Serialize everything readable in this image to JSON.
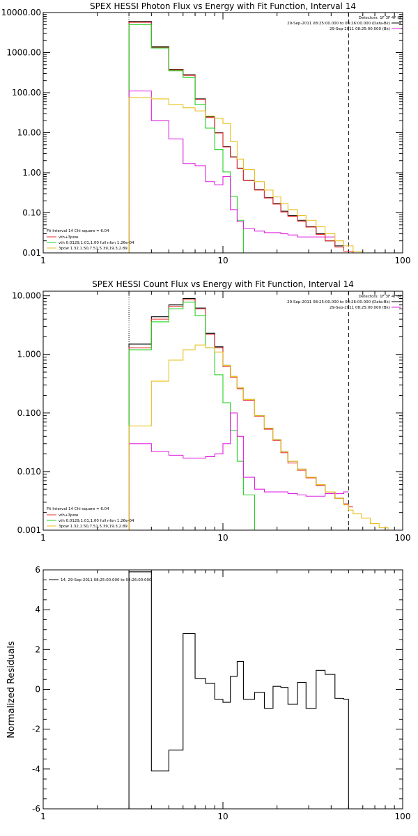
{
  "chart_data": [
    {
      "type": "line",
      "title": "SPEX HESSI Photon Flux vs Energy with Fit Function, Interval 14",
      "xlabel": "",
      "ylabel": "",
      "xscale": "log",
      "yscale": "log",
      "xlim": [
        1,
        100
      ],
      "ylim": [
        0.01,
        10000
      ],
      "xticks": [
        "1",
        "10",
        "100"
      ],
      "yticks": [
        "0.01",
        "0.10",
        "1.00",
        "10.00",
        "100.00",
        "1000.00",
        "10000.00"
      ],
      "vlines": [
        {
          "x": 3,
          "style": "dotted"
        },
        {
          "x": 50,
          "style": "dashed"
        }
      ],
      "legend_top_right": [
        "Detectors: 1F 3F 4F 8F",
        "29-Sep-2011 08:25:00.000 to 08:26:00.000 (Data-Bk)",
        "29-Sep-2011 08:25:00.000 (Bk)"
      ],
      "legend_bottom_left": [
        "Fit Interval 14   Chi-square = 6.04",
        "vth+3pow",
        "vth 0.0129,1.01,1.00  full nfon 1.26e-04",
        "3pow 1.32,1.50,7.51,5.39,19.3,2.89"
      ],
      "edges": [
        3,
        4,
        5,
        6,
        7,
        8,
        9,
        10,
        11,
        12,
        13,
        15,
        17,
        19,
        21,
        23,
        26,
        29,
        33,
        37,
        42,
        47,
        53,
        59,
        66,
        74
      ],
      "series": [
        {
          "id": "data",
          "color": "#000000",
          "values": [
            6000,
            1400,
            380,
            280,
            70,
            25,
            10,
            4.5,
            2.5,
            1.3,
            0.65,
            0.38,
            0.24,
            0.17,
            0.11,
            0.085,
            0.065,
            0.045,
            0.03,
            0.02,
            0.015
          ]
        },
        {
          "id": "total",
          "color": "#e8302f",
          "values": [
            5700,
            1350,
            370,
            270,
            68,
            24,
            9.8,
            4.4,
            2.45,
            1.28,
            0.64,
            0.37,
            0.235,
            0.165,
            0.105,
            0.082,
            0.062,
            0.044,
            0.029,
            0.02,
            0.014,
            0.011,
            0.009,
            0.0075,
            0.006
          ]
        },
        {
          "id": "vth",
          "color": "#22d022",
          "values": [
            5000,
            1300,
            350,
            240,
            50,
            13,
            3.8,
            1.05,
            0.26,
            0.065,
            0.008
          ]
        },
        {
          "id": "bk",
          "color": "#e020e0",
          "values": [
            110,
            20,
            7,
            1.7,
            1.5,
            0.6,
            0.5,
            0.8,
            0.12,
            0.06,
            0.04,
            0.035,
            0.032,
            0.032,
            0.03,
            0.028,
            0.025,
            0.025,
            0.025,
            0.025
          ]
        },
        {
          "id": "pow",
          "color": "#e8c020",
          "values": [
            75,
            70,
            50,
            42,
            35,
            26,
            23,
            17,
            6,
            2.2,
            1.2,
            0.6,
            0.37,
            0.25,
            0.17,
            0.12,
            0.085,
            0.065,
            0.045,
            0.03,
            0.02,
            0.015,
            0.011,
            0.009,
            0.0075
          ]
        }
      ]
    },
    {
      "type": "line",
      "title": "SPEX HESSI Count Flux vs Energy with Fit Function, Interval 14",
      "xlabel": "",
      "ylabel": "",
      "xscale": "log",
      "yscale": "log",
      "xlim": [
        1,
        100
      ],
      "ylim": [
        0.001,
        12
      ],
      "xticks": [
        "1",
        "10",
        "100"
      ],
      "yticks": [
        "0.001",
        "0.010",
        "0.100",
        "1.000",
        "10.000"
      ],
      "vlines": [
        {
          "x": 3,
          "style": "dotted"
        },
        {
          "x": 50,
          "style": "dashed"
        }
      ],
      "legend_top_right": [
        "Detectors: 1F 3F 4F 8F",
        "29-Sep-2011 08:25:00.000 to 08:26:00.000 (Data-Bk)",
        "29-Sep-2011 08:25:00.000 (Bk)"
      ],
      "legend_bottom_left": [
        "Fit Interval 14   Chi-square = 6.04",
        "vth+3pow",
        "vth 0.0129,1.01,1.00  full nfon 1.26e-04",
        "3pow 1.32,1.50,7.51,5.39,19.3,2.89"
      ],
      "edges": [
        3,
        4,
        5,
        6,
        7,
        8,
        9,
        10,
        11,
        12,
        13,
        15,
        17,
        19,
        21,
        23,
        26,
        29,
        33,
        37,
        42,
        47,
        50,
        53,
        59,
        66,
        74,
        83,
        93,
        100
      ],
      "series": [
        {
          "id": "data",
          "color": "#000000",
          "values": [
            1.5,
            4.4,
            7,
            9,
            6.2,
            2.3,
            1.35,
            0.65,
            0.42,
            0.27,
            0.17,
            0.09,
            0.055,
            0.035,
            0.022,
            0.015,
            0.011,
            0.008,
            0.006,
            0.0045,
            0.0035,
            0.0028
          ]
        },
        {
          "id": "total",
          "color": "#e8302f",
          "values": [
            1.3,
            4.0,
            6.6,
            8.6,
            6.0,
            2.2,
            1.3,
            0.62,
            0.41,
            0.26,
            0.165,
            0.088,
            0.053,
            0.034,
            0.021,
            0.014,
            0.0105,
            0.0078,
            0.0058,
            0.0045,
            0.0035,
            0.0028,
            0.0025
          ]
        },
        {
          "id": "vth",
          "color": "#22d022",
          "values": [
            1.2,
            3.6,
            6,
            7.8,
            4.6,
            1.3,
            0.45,
            0.15,
            0.05,
            0.015,
            0.004,
            0.001
          ]
        },
        {
          "id": "bk",
          "color": "#e020e0",
          "values": [
            0.03,
            0.022,
            0.019,
            0.017,
            0.017,
            0.018,
            0.02,
            0.03,
            0.1,
            0.04,
            0.008,
            0.005,
            0.0045,
            0.0045,
            0.0045,
            0.0042,
            0.004,
            0.0038,
            0.0038,
            0.0042,
            0.0042,
            0.0045
          ]
        },
        {
          "id": "pow",
          "color": "#e8c020",
          "values": [
            0.06,
            0.35,
            0.8,
            1.2,
            1.45,
            1.3,
            1.1,
            0.65,
            0.42,
            0.27,
            0.17,
            0.09,
            0.055,
            0.035,
            0.022,
            0.015,
            0.011,
            0.008,
            0.006,
            0.0045,
            0.0035,
            0.0027,
            0.0022,
            0.0019,
            0.0016,
            0.0013,
            0.0011,
            0.001,
            0.001
          ]
        }
      ]
    },
    {
      "type": "line",
      "title": "",
      "xlabel": "",
      "ylabel": "Normalized Residuals",
      "xscale": "log",
      "yscale": "linear",
      "xlim": [
        1,
        100
      ],
      "ylim": [
        -6,
        6
      ],
      "xticks": [
        "1",
        "10",
        "100"
      ],
      "yticks": [
        "6",
        "4",
        "2",
        "0",
        "-2",
        "-4",
        "-6"
      ],
      "legend": "14. 29-Sep-2011 08:25:00.000 to 08:26:00.000",
      "edges": [
        3,
        4,
        5,
        6,
        7,
        8,
        9,
        10,
        11,
        12,
        13,
        15,
        17,
        19,
        21,
        23,
        26,
        29,
        33,
        37,
        42,
        47,
        50
      ],
      "series": [
        {
          "id": "residuals",
          "color": "#000000",
          "values": [
            5.9,
            -4.1,
            -3.05,
            2.8,
            0.55,
            0.3,
            -0.5,
            -0.65,
            0.65,
            1.4,
            -0.5,
            -0.15,
            -0.95,
            0.15,
            0.1,
            -0.75,
            0.35,
            -0.95,
            0.95,
            0.75,
            -0.45,
            -0.5
          ]
        }
      ]
    }
  ]
}
